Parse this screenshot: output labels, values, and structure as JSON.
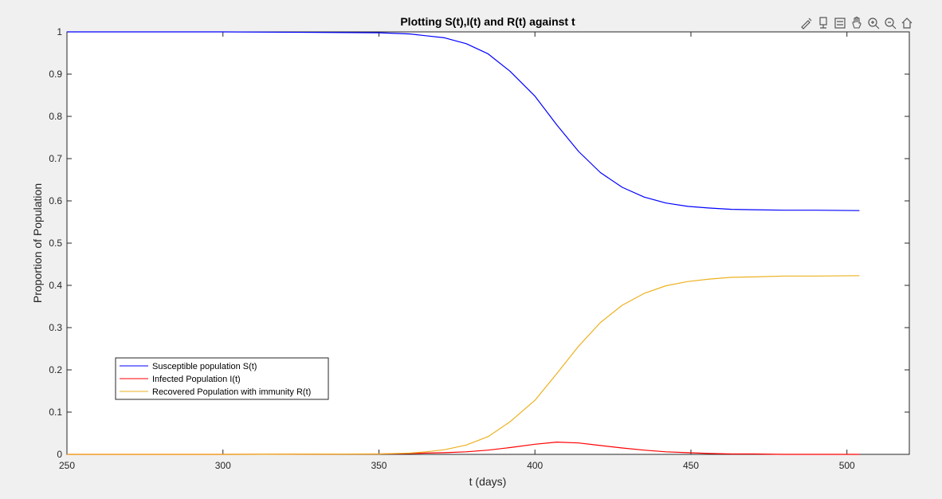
{
  "chart_data": {
    "type": "line",
    "title": "Plotting S(t),I(t) and R(t) against t",
    "xlabel": "t (days)",
    "ylabel": "Proportion of Population",
    "xlim": [
      250,
      520
    ],
    "ylim": [
      0,
      1
    ],
    "xticks": [
      250,
      300,
      350,
      400,
      450,
      500
    ],
    "yticks": [
      0,
      0.1,
      0.2,
      0.3,
      0.4,
      0.5,
      0.6,
      0.7,
      0.8,
      0.9,
      1
    ],
    "grid": false,
    "legend_position": "bottom-left",
    "x": [
      250,
      300,
      350,
      360,
      365,
      371,
      378,
      385,
      392,
      400,
      407,
      414,
      421,
      428,
      435,
      442,
      449,
      456,
      463,
      470,
      480,
      490,
      504
    ],
    "series": [
      {
        "name": "Susceptible population S(t)",
        "color": "#0000ff",
        "values": [
          1.0,
          1.0,
          0.998,
          0.995,
          0.991,
          0.986,
          0.972,
          0.948,
          0.907,
          0.848,
          0.78,
          0.717,
          0.667,
          0.632,
          0.609,
          0.595,
          0.587,
          0.583,
          0.58,
          0.579,
          0.578,
          0.578,
          0.577
        ]
      },
      {
        "name": "Infected Population I(t)",
        "color": "#ff0000",
        "values": [
          0.0,
          0.0,
          0.001,
          0.002,
          0.003,
          0.004,
          0.006,
          0.01,
          0.016,
          0.024,
          0.029,
          0.027,
          0.021,
          0.015,
          0.01,
          0.006,
          0.004,
          0.002,
          0.001,
          0.001,
          0.0,
          0.0,
          0.0
        ]
      },
      {
        "name": "Recovered Population with immunity R(t)",
        "color": "#edb120",
        "values": [
          0.0,
          0.0,
          0.001,
          0.003,
          0.006,
          0.011,
          0.022,
          0.042,
          0.077,
          0.128,
          0.191,
          0.256,
          0.312,
          0.353,
          0.381,
          0.399,
          0.409,
          0.415,
          0.419,
          0.42,
          0.422,
          0.422,
          0.423
        ]
      }
    ]
  },
  "toolbar": {
    "icons": [
      "brush-icon",
      "data-tips-icon",
      "legend-icon",
      "pan-icon",
      "zoom-in-icon",
      "zoom-out-icon",
      "home-icon"
    ]
  }
}
